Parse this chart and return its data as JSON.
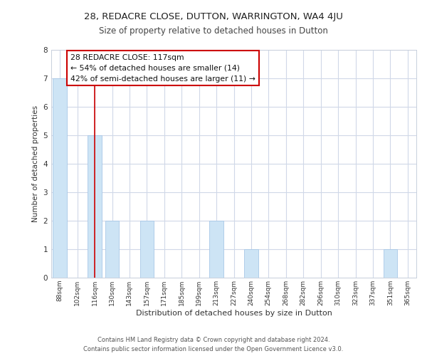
{
  "title1": "28, REDACRE CLOSE, DUTTON, WARRINGTON, WA4 4JU",
  "title2": "Size of property relative to detached houses in Dutton",
  "xlabel": "Distribution of detached houses by size in Dutton",
  "ylabel": "Number of detached properties",
  "categories": [
    "88sqm",
    "102sqm",
    "116sqm",
    "130sqm",
    "143sqm",
    "157sqm",
    "171sqm",
    "185sqm",
    "199sqm",
    "213sqm",
    "227sqm",
    "240sqm",
    "254sqm",
    "268sqm",
    "282sqm",
    "296sqm",
    "310sqm",
    "323sqm",
    "337sqm",
    "351sqm",
    "365sqm"
  ],
  "values": [
    7,
    0,
    5,
    2,
    0,
    2,
    0,
    0,
    0,
    2,
    0,
    1,
    0,
    0,
    0,
    0,
    0,
    0,
    0,
    1,
    0
  ],
  "bar_color": "#cde4f5",
  "bar_edge_color": "#a8c8e8",
  "highlight_index": 2,
  "highlight_line_color": "#cc0000",
  "ylim": [
    0,
    8
  ],
  "yticks": [
    0,
    1,
    2,
    3,
    4,
    5,
    6,
    7,
    8
  ],
  "annotation_text": "28 REDACRE CLOSE: 117sqm\n← 54% of detached houses are smaller (14)\n42% of semi-detached houses are larger (11) →",
  "annotation_box_color": "#ffffff",
  "annotation_box_edge": "#cc0000",
  "footer1": "Contains HM Land Registry data © Crown copyright and database right 2024.",
  "footer2": "Contains public sector information licensed under the Open Government Licence v3.0.",
  "bg_color": "#ffffff",
  "grid_color": "#d0d8e8"
}
